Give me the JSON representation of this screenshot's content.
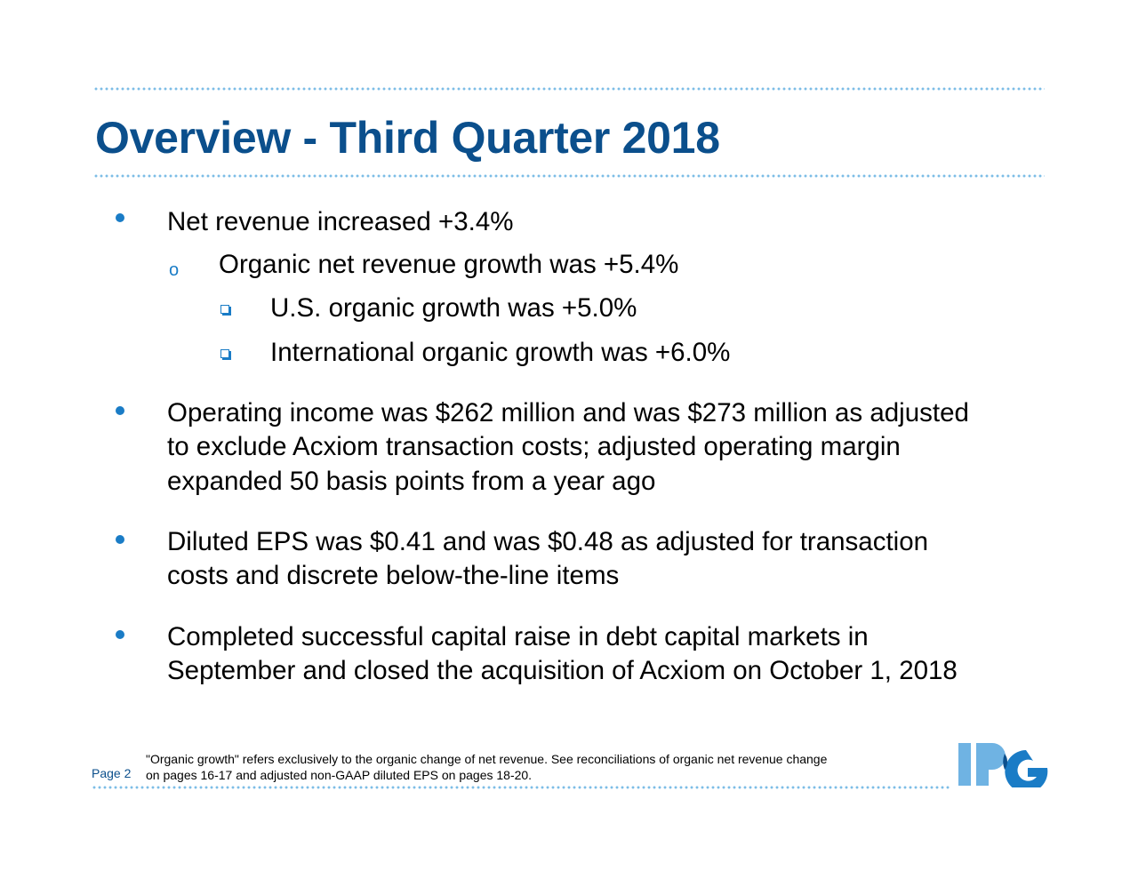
{
  "title": "Overview - Third Quarter 2018",
  "bullets": [
    {
      "lines": [
        "Net revenue increased +3.4%"
      ]
    },
    {
      "lines": [
        "Organic net revenue growth was +5.4%"
      ]
    },
    {
      "lines": [
        "U.S. organic growth was +5.0%"
      ]
    },
    {
      "lines": [
        "International organic growth was +6.0%"
      ]
    },
    {
      "lines": [
        "Operating income was $262 million and was $273 million as adjusted",
        "to exclude Acxiom transaction costs; adjusted operating margin",
        "expanded 50 basis points from a year ago"
      ]
    },
    {
      "lines": [
        "Diluted EPS was $0.41 and was $0.48 as adjusted for transaction",
        "costs and discrete below-the-line items"
      ]
    },
    {
      "lines": [
        "Completed successful capital raise in debt capital markets in",
        "September and closed the acquisition of Acxiom on October 1, 2018"
      ]
    }
  ],
  "footnote": [
    "\"Organic growth\" refers exclusively to the organic change of net revenue. See reconciliations of organic net revenue change",
    "on pages 16-17 and adjusted non-GAAP diluted EPS on pages 18-20."
  ],
  "page_label": "Page 2",
  "logo_text": "IPG",
  "colors": {
    "title": "#0b4f8c",
    "accent": "#1a7cc6",
    "dots": "#7dbde6"
  }
}
